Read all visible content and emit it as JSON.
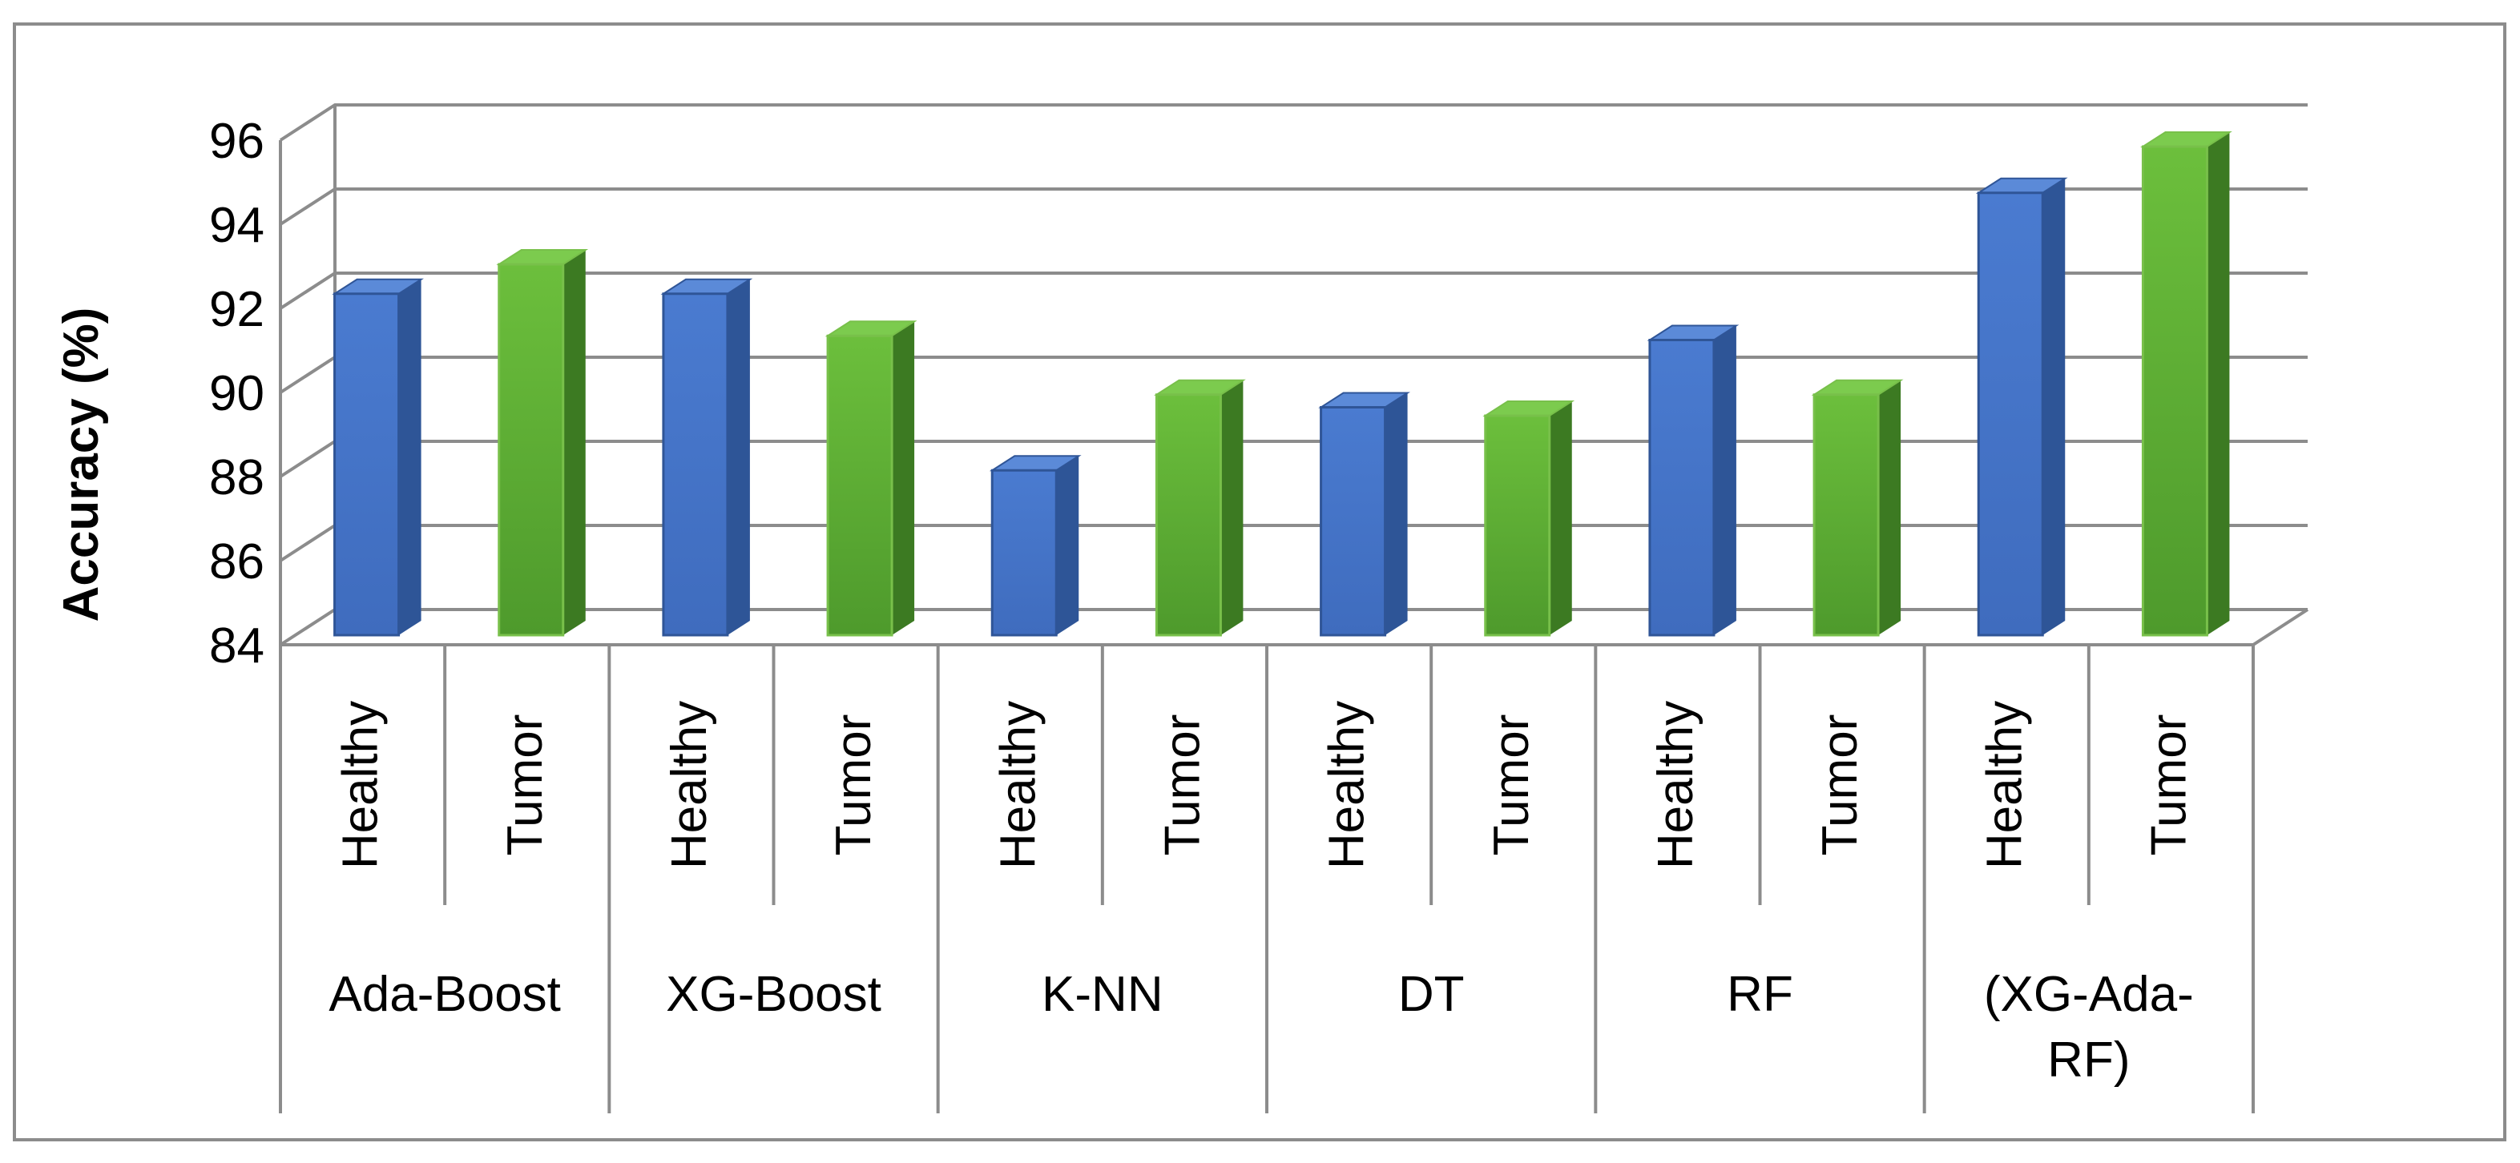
{
  "chart_data": {
    "type": "bar",
    "title": "",
    "xlabel": "",
    "ylabel": "Accuracy (%)",
    "ylim": [
      84,
      96
    ],
    "yticks": [
      "84",
      "86",
      "88",
      "90",
      "92",
      "94",
      "96"
    ],
    "grid": true,
    "legend": "none",
    "style": "3d-column",
    "categories": [
      {
        "group": "Ada-Boost",
        "class": "Healthy",
        "value": 92.5,
        "color": "#4472C4"
      },
      {
        "group": "Ada-Boost",
        "class": "Tumor",
        "value": 93.2,
        "color": "#5DB33A"
      },
      {
        "group": "XG-Boost",
        "class": "Healthy",
        "value": 92.5,
        "color": "#4472C4"
      },
      {
        "group": "XG-Boost",
        "class": "Tumor",
        "value": 91.5,
        "color": "#5DB33A"
      },
      {
        "group": "K-NN",
        "class": "Healthy",
        "value": 88.3,
        "color": "#4472C4"
      },
      {
        "group": "K-NN",
        "class": "Tumor",
        "value": 90.1,
        "color": "#5DB33A"
      },
      {
        "group": "DT",
        "class": "Healthy",
        "value": 89.8,
        "color": "#4472C4"
      },
      {
        "group": "DT",
        "class": "Tumor",
        "value": 89.6,
        "color": "#5DB33A"
      },
      {
        "group": "RF",
        "class": "Healthy",
        "value": 91.4,
        "color": "#4472C4"
      },
      {
        "group": "RF",
        "class": "Tumor",
        "value": 90.1,
        "color": "#5DB33A"
      },
      {
        "group": "(XG-Ada-RF)",
        "class": "Healthy",
        "value": 94.9,
        "color": "#4472C4"
      },
      {
        "group": "(XG-Ada-RF)",
        "class": "Tumor",
        "value": 96.0,
        "color": "#5DB33A"
      }
    ],
    "groups": [
      {
        "label_lines": [
          "Ada-Boost"
        ]
      },
      {
        "label_lines": [
          "XG-Boost"
        ]
      },
      {
        "label_lines": [
          "K-NN"
        ]
      },
      {
        "label_lines": [
          "DT"
        ]
      },
      {
        "label_lines": [
          "RF"
        ]
      },
      {
        "label_lines": [
          "(XG-Ada-",
          "RF)"
        ]
      }
    ],
    "colors": {
      "healthy": "#4472C4",
      "tumor": "#5DB33A",
      "grid": "#8C8C8C",
      "frame": "#8C8C8C"
    }
  }
}
